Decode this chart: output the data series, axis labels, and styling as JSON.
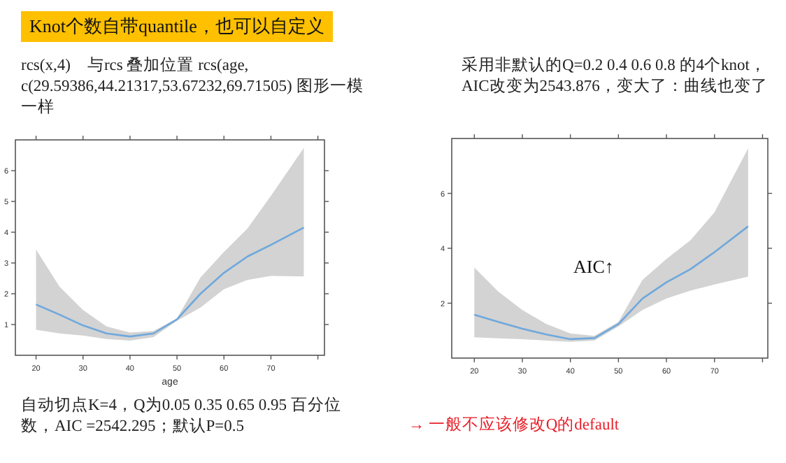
{
  "chart_data": [
    {
      "type": "line",
      "title": "Knot个数自带quantile，也可以自定义",
      "subtitle": "rcs(x,4)　与rcs 叠加位置 rcs(age, c(29.59386,44.21317,53.67232,69.71505) 图形一模一样",
      "xlabel": "age",
      "xlim": [
        15.6,
        81.4
      ],
      "xticks": [
        20,
        30,
        40,
        50,
        60,
        70,
        {
          "value": 80,
          "label": null
        }
      ],
      "ylim": [
        0,
        7
      ],
      "yticks": [
        1,
        2,
        3,
        4,
        5,
        6
      ],
      "x": [
        20,
        25,
        30,
        35,
        40,
        45,
        50,
        55,
        60,
        65,
        70,
        77
      ],
      "series": [
        {
          "color": "#6fa8dc",
          "values": [
            1.65,
            1.32,
            0.97,
            0.71,
            0.61,
            0.71,
            1.17,
            2.0,
            2.68,
            3.21,
            3.59,
            4.15
          ],
          "lower": [
            0.83,
            0.71,
            0.64,
            0.53,
            0.48,
            0.59,
            1.12,
            1.55,
            2.15,
            2.45,
            2.58,
            2.56
          ],
          "upper": [
            3.44,
            2.23,
            1.47,
            0.94,
            0.74,
            0.79,
            1.2,
            2.53,
            3.36,
            4.12,
            5.18,
            6.74
          ]
        }
      ],
      "annotations": [
        "自动切点K=4，Q为0.05 0.35 0.65 0.95 百分位数，AIC =2542.295；默认P=0.5"
      ]
    },
    {
      "type": "line",
      "subtitle": "采用非默认的Q=0.2 0.4 0.6 0.8 的4个knot，AIC改变为2543.876，变大了：曲线也变了",
      "xlim": [
        15.3,
        81.1
      ],
      "xticks": [
        20,
        30,
        40,
        50,
        60,
        70,
        {
          "value": 80,
          "label": null
        }
      ],
      "ylim": [
        0,
        8
      ],
      "yticks": [
        2,
        4,
        6
      ],
      "x": [
        20,
        25,
        30,
        35,
        40,
        45,
        50,
        55,
        60,
        65,
        70,
        77
      ],
      "series": [
        {
          "color": "#6fa8dc",
          "values": [
            1.58,
            1.32,
            1.07,
            0.86,
            0.69,
            0.73,
            1.24,
            2.17,
            2.76,
            3.24,
            3.86,
            4.8
          ],
          "lower": [
            0.76,
            0.72,
            0.69,
            0.64,
            0.59,
            0.64,
            1.15,
            1.75,
            2.17,
            2.46,
            2.68,
            2.97
          ],
          "upper": [
            3.3,
            2.42,
            1.75,
            1.24,
            0.9,
            0.81,
            1.32,
            2.85,
            3.61,
            4.29,
            5.31,
            7.64
          ]
        }
      ],
      "annotations": [
        "AIC↑",
        "→ 一般不应该修改Q的default"
      ]
    }
  ]
}
